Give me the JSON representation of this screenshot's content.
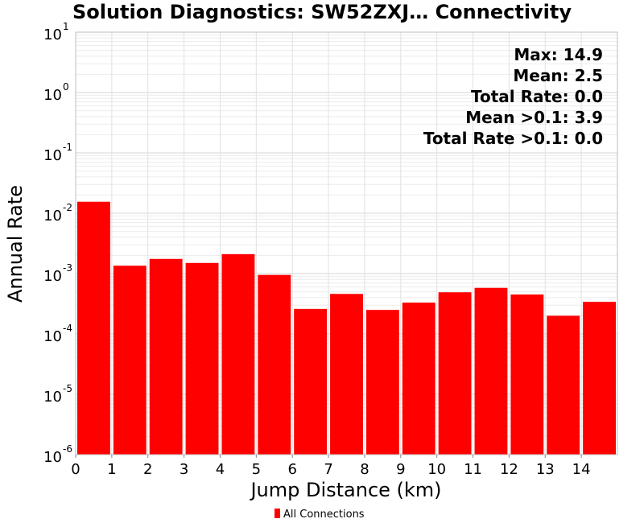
{
  "chart_data": {
    "type": "bar",
    "title": "Solution Diagnostics: SW52ZXJ… Connectivity",
    "xlabel": "Jump Distance (km)",
    "ylabel": "Annual Rate",
    "yscale": "log",
    "ylim": [
      1e-06,
      10
    ],
    "xlim": [
      0,
      15
    ],
    "x_ticks": [
      "0",
      "1",
      "2",
      "3",
      "4",
      "5",
      "6",
      "7",
      "8",
      "9",
      "10",
      "11",
      "12",
      "13",
      "14"
    ],
    "y_ticks": [
      {
        "base": "10",
        "exp": "1"
      },
      {
        "base": "10",
        "exp": "0"
      },
      {
        "base": "10",
        "exp": "-1"
      },
      {
        "base": "10",
        "exp": "-2"
      },
      {
        "base": "10",
        "exp": "-3"
      },
      {
        "base": "10",
        "exp": "-4"
      },
      {
        "base": "10",
        "exp": "-5"
      },
      {
        "base": "10",
        "exp": "-6"
      }
    ],
    "grid": true,
    "bar_color": "#ff0000",
    "series": [
      {
        "name": "All Connections",
        "x_start": [
          0,
          1,
          2,
          3,
          4,
          5,
          6,
          7,
          8,
          9,
          10,
          11,
          12,
          13,
          14
        ],
        "values": [
          0.0155,
          0.00135,
          0.00175,
          0.0015,
          0.0021,
          0.00095,
          0.00026,
          0.00046,
          0.00025,
          0.00033,
          0.00049,
          0.00058,
          0.00045,
          0.0002,
          0.00034
        ]
      }
    ],
    "annotations": [
      "Max: 14.9",
      "Mean: 2.5",
      "Total Rate: 0.0",
      "Mean >0.1: 3.9",
      "Total Rate >0.1: 0.0"
    ],
    "legend": {
      "position": "bottom-center",
      "entries": [
        "All Connections"
      ]
    }
  }
}
